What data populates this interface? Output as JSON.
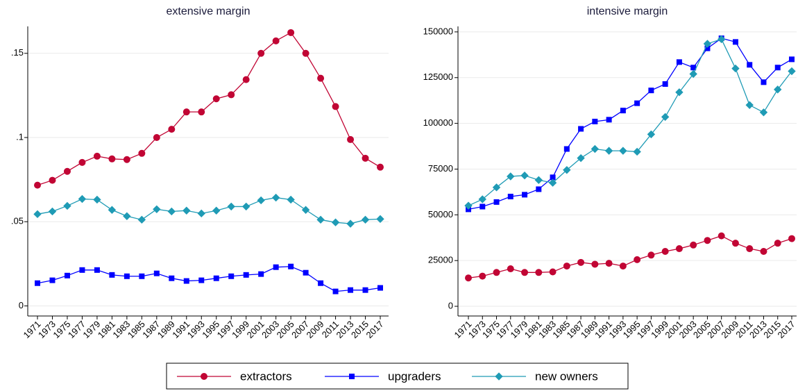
{
  "chart_data": [
    {
      "type": "line",
      "title": "extensive margin",
      "categories": [
        "1971",
        "1973",
        "1975",
        "1977",
        "1979",
        "1981",
        "1983",
        "1985",
        "1987",
        "1989",
        "1991",
        "1993",
        "1995",
        "1997",
        "1999",
        "2001",
        "2003",
        "2005",
        "2007",
        "2009",
        "2011",
        "2013",
        "2015",
        "2017"
      ],
      "series": [
        {
          "name": "extractors",
          "color": "#c10534",
          "marker": "circle",
          "values": [
            0.0717,
            0.0746,
            0.0799,
            0.0852,
            0.0889,
            0.0873,
            0.0869,
            0.0906,
            0.1,
            0.1049,
            0.1152,
            0.1152,
            0.123,
            0.1254,
            0.1344,
            0.15,
            0.1574,
            0.1623,
            0.15,
            0.1352,
            0.1184,
            0.0988,
            0.0877,
            0.0824
          ]
        },
        {
          "name": "upgraders",
          "color": "#0000ff",
          "marker": "square",
          "values": [
            0.0135,
            0.0152,
            0.018,
            0.0213,
            0.0213,
            0.0184,
            0.0176,
            0.0176,
            0.0193,
            0.0164,
            0.0148,
            0.0152,
            0.0164,
            0.0176,
            0.0184,
            0.0189,
            0.023,
            0.0234,
            0.0197,
            0.0135,
            0.0086,
            0.0094,
            0.0094,
            0.0107
          ]
        },
        {
          "name": "new owners",
          "color": "#1f9bb5",
          "marker": "diamond",
          "values": [
            0.0545,
            0.0561,
            0.0594,
            0.0635,
            0.0631,
            0.057,
            0.0533,
            0.0512,
            0.0574,
            0.0561,
            0.0566,
            0.0549,
            0.0566,
            0.059,
            0.059,
            0.0627,
            0.0643,
            0.0631,
            0.057,
            0.0512,
            0.0496,
            0.0488,
            0.0512,
            0.0516
          ]
        }
      ],
      "ylim": [
        -0.006,
        0.166
      ],
      "yticks": [
        0,
        {
          "value": 0.05,
          "label": ".05"
        },
        {
          "value": 0.1,
          "label": ".1"
        },
        {
          "value": 0.15,
          "label": ".15"
        }
      ],
      "grid": true
    },
    {
      "type": "line",
      "title": "intensive margin",
      "categories": [
        "1971",
        "1973",
        "1975",
        "1977",
        "1979",
        "1981",
        "1983",
        "1985",
        "1987",
        "1989",
        "1991",
        "1993",
        "1995",
        "1997",
        "1999",
        "2001",
        "2003",
        "2005",
        "2007",
        "2009",
        "2011",
        "2013",
        "2015",
        "2017"
      ],
      "series": [
        {
          "color": "#c10534",
          "marker": "circle",
          "values": [
            15500,
            16500,
            18500,
            20500,
            18500,
            18500,
            18800,
            22000,
            24000,
            23000,
            23500,
            22000,
            25500,
            28000,
            30000,
            31500,
            33500,
            36000,
            38500,
            34500,
            31500,
            30000,
            34500,
            37000
          ]
        },
        {
          "color": "#0000ff",
          "marker": "square",
          "values": [
            53000,
            54500,
            57000,
            60000,
            61000,
            64000,
            70500,
            86000,
            97000,
            101000,
            102000,
            107000,
            111000,
            118000,
            121500,
            133500,
            130500,
            141000,
            146500,
            144500,
            132000,
            122500,
            130500,
            135000
          ]
        },
        {
          "color": "#1f9bb5",
          "marker": "diamond",
          "values": [
            55000,
            58500,
            65000,
            71000,
            71500,
            69000,
            67500,
            74500,
            81000,
            86000,
            85000,
            85000,
            84500,
            94000,
            103500,
            117000,
            127000,
            143500,
            146000,
            130000,
            110000,
            106000,
            118500,
            128500
          ]
        }
      ],
      "ylim": [
        -5300,
        153000
      ],
      "yticks": [
        0,
        25000,
        50000,
        75000,
        100000,
        125000,
        150000
      ],
      "grid": true
    }
  ]
}
